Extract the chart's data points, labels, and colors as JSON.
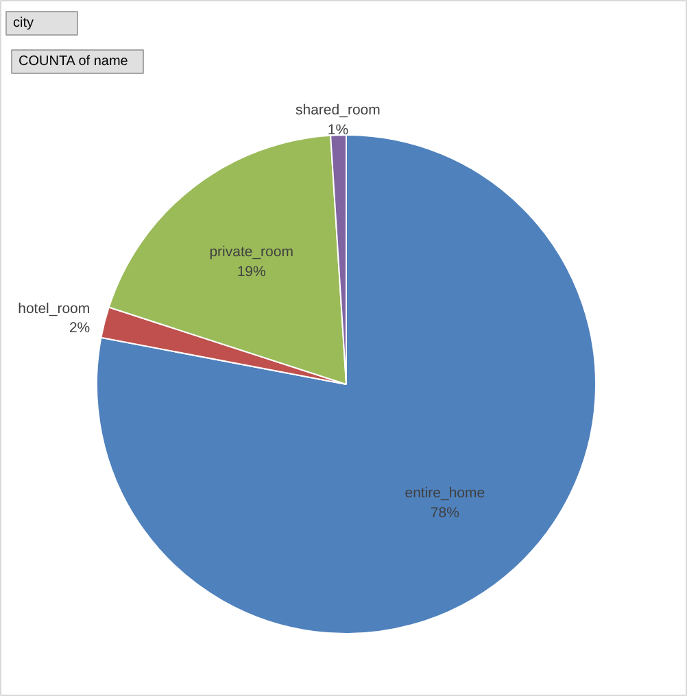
{
  "chart_data": {
    "type": "pie",
    "categories": [
      "entire_home",
      "hotel_room",
      "private_room",
      "shared_room"
    ],
    "values": [
      78,
      2,
      19,
      1
    ],
    "value_labels": [
      "78%",
      "2%",
      "19%",
      "1%"
    ],
    "colors": [
      "#4f81bd",
      "#c0504d",
      "#9bbb59",
      "#8064a2"
    ],
    "annotations": [
      "city",
      "COUNTA of name"
    ]
  }
}
